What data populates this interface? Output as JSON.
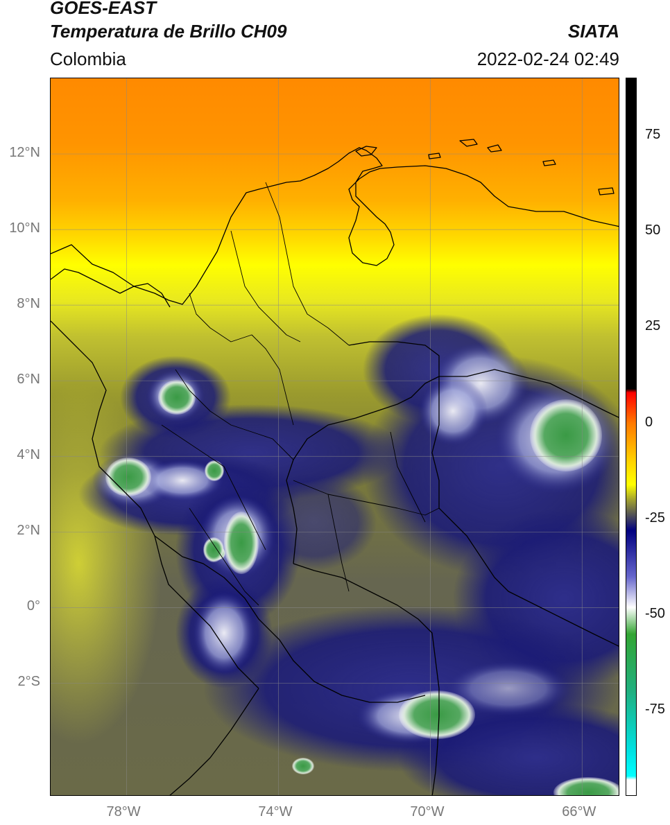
{
  "header": {
    "satellite": "GOES-EAST",
    "product": "Temperatura de Brillo CH09",
    "region": "Colombia",
    "source": "SIATA",
    "timestamp": "2022-02-24 02:49"
  },
  "map": {
    "lon_range": [
      -80,
      -65
    ],
    "lat_range": [
      -5,
      14
    ],
    "lat_ticks": [
      {
        "value": 12,
        "label": "12°N"
      },
      {
        "value": 10,
        "label": "10°N"
      },
      {
        "value": 8,
        "label": "8°N"
      },
      {
        "value": 6,
        "label": "6°N"
      },
      {
        "value": 4,
        "label": "4°N"
      },
      {
        "value": 2,
        "label": "2°N"
      },
      {
        "value": 0,
        "label": "0°"
      },
      {
        "value": -2,
        "label": "2°S"
      }
    ],
    "lon_ticks": [
      {
        "value": -78,
        "label": "78°W"
      },
      {
        "value": -74,
        "label": "74°W"
      },
      {
        "value": -70,
        "label": "70°W"
      },
      {
        "value": -66,
        "label": "66°W"
      }
    ],
    "gridlines": true
  },
  "colorbar": {
    "range": [
      -97,
      90
    ],
    "ticks": [
      {
        "value": 75,
        "label": "75"
      },
      {
        "value": 50,
        "label": "50"
      },
      {
        "value": 25,
        "label": "25"
      },
      {
        "value": 0,
        "label": "0"
      },
      {
        "value": -25,
        "label": "-25"
      },
      {
        "value": -50,
        "label": "-50"
      },
      {
        "value": -75,
        "label": "-75"
      }
    ],
    "stops": [
      {
        "value": 90,
        "color": "#000000"
      },
      {
        "value": 9,
        "color": "#000000"
      },
      {
        "value": 8,
        "color": "#ff0000"
      },
      {
        "value": 0,
        "color": "#ff7a00"
      },
      {
        "value": -10,
        "color": "#ffd400"
      },
      {
        "value": -16,
        "color": "#ffff00"
      },
      {
        "value": -20,
        "color": "#a0a030"
      },
      {
        "value": -24,
        "color": "#505058"
      },
      {
        "value": -28,
        "color": "#000080"
      },
      {
        "value": -40,
        "color": "#6666cc"
      },
      {
        "value": -48,
        "color": "#ffffff"
      },
      {
        "value": -55,
        "color": "#33a533"
      },
      {
        "value": -70,
        "color": "#20b080"
      },
      {
        "value": -85,
        "color": "#00e0e0"
      },
      {
        "value": -92,
        "color": "#00ffff"
      },
      {
        "value": -93,
        "color": "#ffffff"
      },
      {
        "value": -97,
        "color": "#ffffff"
      }
    ]
  },
  "colors": {
    "warm_top": "#ff8800",
    "mid_yellow": "#ffee00",
    "olive": "#8c8c30",
    "deep_blue": "#0a0a80",
    "cold_green": "#3d9a45",
    "border": "#000000"
  }
}
